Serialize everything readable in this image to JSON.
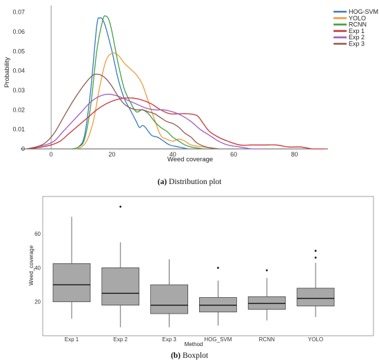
{
  "density_chart": {
    "type": "line",
    "xlabel": "Weed coverage",
    "ylabel": "Probability",
    "xlim": [
      -10,
      91
    ],
    "ylim": [
      0,
      0.072
    ],
    "xticks": [
      0,
      20,
      40,
      60,
      80
    ],
    "yticks": [
      0,
      0.01,
      0.02,
      0.03,
      0.04,
      0.05,
      0.06,
      0.07
    ],
    "ytick_labels": [
      "0",
      "0.01",
      "0.02",
      "0.03",
      "0.04",
      "0.05",
      "0.06",
      "0.07"
    ],
    "legend_placement": "top-right",
    "grid": false,
    "series": [
      {
        "name": "HOG-SVM",
        "color": "#3778bf",
        "points": [
          [
            7,
            0
          ],
          [
            9,
            0.001
          ],
          [
            11,
            0.007
          ],
          [
            13,
            0.03
          ],
          [
            15,
            0.063
          ],
          [
            16,
            0.067
          ],
          [
            17,
            0.066
          ],
          [
            18,
            0.062
          ],
          [
            20,
            0.05
          ],
          [
            22,
            0.036
          ],
          [
            24,
            0.026
          ],
          [
            26,
            0.02
          ],
          [
            28,
            0.014
          ],
          [
            29,
            0.011
          ],
          [
            30,
            0.012
          ],
          [
            31,
            0.011
          ],
          [
            33,
            0.007
          ],
          [
            35,
            0.006
          ],
          [
            37,
            0.004
          ],
          [
            39,
            0.002
          ],
          [
            42,
            0.001
          ],
          [
            45,
            0
          ]
        ]
      },
      {
        "name": "YOLO",
        "color": "#f19a3e",
        "points": [
          [
            8,
            0
          ],
          [
            10,
            0.001
          ],
          [
            12,
            0.005
          ],
          [
            14,
            0.015
          ],
          [
            16,
            0.032
          ],
          [
            18,
            0.045
          ],
          [
            20,
            0.049
          ],
          [
            22,
            0.048
          ],
          [
            24,
            0.044
          ],
          [
            26,
            0.041
          ],
          [
            28,
            0.038
          ],
          [
            30,
            0.033
          ],
          [
            32,
            0.024
          ],
          [
            34,
            0.015
          ],
          [
            36,
            0.007
          ],
          [
            38,
            0.005
          ],
          [
            40,
            0.004
          ],
          [
            42,
            0.005
          ],
          [
            44,
            0.004
          ],
          [
            46,
            0.002
          ],
          [
            50,
            0.001
          ],
          [
            55,
            0
          ]
        ]
      },
      {
        "name": "RCNN",
        "color": "#3fa142",
        "points": [
          [
            7,
            0
          ],
          [
            9,
            0.001
          ],
          [
            11,
            0.005
          ],
          [
            13,
            0.022
          ],
          [
            15,
            0.05
          ],
          [
            17,
            0.066
          ],
          [
            18,
            0.068
          ],
          [
            19,
            0.066
          ],
          [
            20,
            0.06
          ],
          [
            22,
            0.044
          ],
          [
            24,
            0.031
          ],
          [
            26,
            0.024
          ],
          [
            28,
            0.019
          ],
          [
            30,
            0.02
          ],
          [
            32,
            0.018
          ],
          [
            34,
            0.014
          ],
          [
            36,
            0.011
          ],
          [
            38,
            0.009
          ],
          [
            40,
            0.006
          ],
          [
            42,
            0.004
          ],
          [
            44,
            0.002
          ],
          [
            46,
            0.001
          ],
          [
            50,
            0
          ]
        ]
      },
      {
        "name": "Exp 1",
        "color": "#c9333b",
        "points": [
          [
            -7,
            0
          ],
          [
            -3,
            0.001
          ],
          [
            0,
            0.002
          ],
          [
            3,
            0.004
          ],
          [
            6,
            0.008
          ],
          [
            9,
            0.012
          ],
          [
            12,
            0.016
          ],
          [
            15,
            0.02
          ],
          [
            18,
            0.023
          ],
          [
            21,
            0.025
          ],
          [
            24,
            0.026
          ],
          [
            27,
            0.026
          ],
          [
            30,
            0.025
          ],
          [
            33,
            0.023
          ],
          [
            36,
            0.02
          ],
          [
            39,
            0.018
          ],
          [
            42,
            0.018
          ],
          [
            45,
            0.018
          ],
          [
            48,
            0.017
          ],
          [
            50,
            0.013
          ],
          [
            52,
            0.009
          ],
          [
            55,
            0.006
          ],
          [
            58,
            0.004
          ],
          [
            62,
            0.002
          ],
          [
            66,
            0.002
          ],
          [
            70,
            0.002
          ],
          [
            74,
            0.002
          ],
          [
            78,
            0.001
          ],
          [
            82,
            0.001
          ],
          [
            86,
            0
          ],
          [
            90,
            0
          ]
        ]
      },
      {
        "name": "Exp 2",
        "color": "#a05cc2",
        "points": [
          [
            -8,
            0
          ],
          [
            -5,
            0.001
          ],
          [
            -2,
            0.002
          ],
          [
            1,
            0.004
          ],
          [
            4,
            0.009
          ],
          [
            7,
            0.014
          ],
          [
            10,
            0.019
          ],
          [
            13,
            0.024
          ],
          [
            16,
            0.027
          ],
          [
            19,
            0.028
          ],
          [
            22,
            0.027
          ],
          [
            25,
            0.025
          ],
          [
            28,
            0.023
          ],
          [
            31,
            0.021
          ],
          [
            34,
            0.02
          ],
          [
            37,
            0.02
          ],
          [
            40,
            0.019
          ],
          [
            43,
            0.017
          ],
          [
            46,
            0.014
          ],
          [
            49,
            0.01
          ],
          [
            52,
            0.007
          ],
          [
            55,
            0.004
          ],
          [
            58,
            0.002
          ],
          [
            62,
            0.001
          ],
          [
            66,
            0
          ],
          [
            70,
            0
          ]
        ]
      },
      {
        "name": "Exp 3",
        "color": "#8f5a4c",
        "points": [
          [
            -8,
            0
          ],
          [
            -5,
            0.001
          ],
          [
            -2,
            0.003
          ],
          [
            1,
            0.008
          ],
          [
            4,
            0.016
          ],
          [
            7,
            0.024
          ],
          [
            10,
            0.031
          ],
          [
            12,
            0.035
          ],
          [
            14,
            0.038
          ],
          [
            16,
            0.038
          ],
          [
            18,
            0.036
          ],
          [
            20,
            0.032
          ],
          [
            22,
            0.027
          ],
          [
            24,
            0.023
          ],
          [
            26,
            0.021
          ],
          [
            28,
            0.02
          ],
          [
            30,
            0.02
          ],
          [
            32,
            0.019
          ],
          [
            34,
            0.018
          ],
          [
            36,
            0.016
          ],
          [
            38,
            0.014
          ],
          [
            40,
            0.013
          ],
          [
            42,
            0.011
          ],
          [
            44,
            0.008
          ],
          [
            46,
            0.006
          ],
          [
            48,
            0.003
          ],
          [
            51,
            0.001
          ],
          [
            55,
            0
          ]
        ]
      }
    ]
  },
  "box_chart": {
    "type": "box",
    "xlabel": "Method",
    "ylabel": "Weed_coverage",
    "ylim": [
      0,
      82
    ],
    "yticks": [
      20,
      40,
      60
    ],
    "box_color": "#a8a8a8",
    "categories": [
      "Exp 1",
      "Exp 2",
      "Exp 3",
      "HOG_SVM",
      "RCNN",
      "YOLO"
    ],
    "boxes": [
      {
        "label": "Exp 1",
        "min": 10,
        "q1": 20,
        "median": 30,
        "q3": 42.5,
        "max": 70,
        "outliers": []
      },
      {
        "label": "Exp 2",
        "min": 5,
        "q1": 18,
        "median": 25,
        "q3": 40,
        "max": 55,
        "outliers": [
          76
        ]
      },
      {
        "label": "Exp 3",
        "min": 5,
        "q1": 13,
        "median": 18,
        "q3": 30,
        "max": 45,
        "outliers": []
      },
      {
        "label": "HOG_SVM",
        "min": 6,
        "q1": 14,
        "median": 18,
        "q3": 22.5,
        "max": 32.5,
        "outliers": [
          40
        ]
      },
      {
        "label": "RCNN",
        "min": 9,
        "q1": 15.5,
        "median": 19,
        "q3": 23,
        "max": 34,
        "outliers": [
          38.5
        ]
      },
      {
        "label": "YOLO",
        "min": 11,
        "q1": 17.5,
        "median": 22,
        "q3": 28,
        "max": 43,
        "outliers": [
          46,
          50
        ]
      }
    ]
  },
  "captions": {
    "a_prefix": "(a)",
    "a_text": "Distribution plot",
    "b_prefix": "(b)",
    "b_text": "Boxplot"
  }
}
